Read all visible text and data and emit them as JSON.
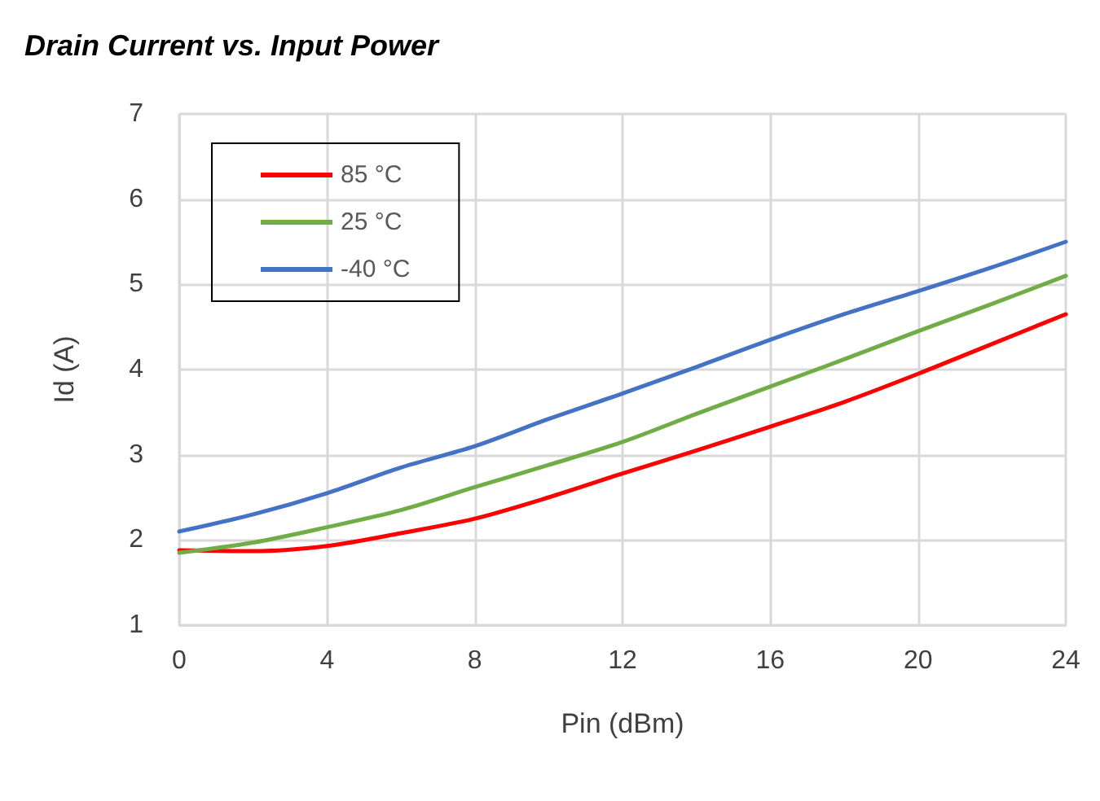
{
  "chart_data": {
    "type": "line",
    "title": "Drain Current vs. Input Power",
    "xlabel": "Pin (dBm)",
    "ylabel": "Id (A)",
    "x": [
      0,
      2,
      4,
      6,
      8,
      10,
      12,
      14,
      16,
      18,
      20,
      22,
      24
    ],
    "series": [
      {
        "name": "85 °C",
        "color": "#ff0000",
        "values": [
          1.88,
          1.87,
          1.93,
          2.08,
          2.25,
          2.5,
          2.78,
          3.05,
          3.33,
          3.62,
          3.95,
          4.3,
          4.65
        ]
      },
      {
        "name": "25 °C",
        "color": "#70ad47",
        "values": [
          1.85,
          1.97,
          2.15,
          2.35,
          2.62,
          2.88,
          3.15,
          3.48,
          3.8,
          4.12,
          4.45,
          4.77,
          5.1
        ]
      },
      {
        "name": "-40 °C",
        "color": "#4472c4",
        "values": [
          2.1,
          2.3,
          2.55,
          2.85,
          3.1,
          3.42,
          3.72,
          4.03,
          4.35,
          4.65,
          4.92,
          5.2,
          5.5
        ]
      }
    ],
    "xlim": [
      0,
      24
    ],
    "xticks": [
      0,
      4,
      8,
      12,
      16,
      20,
      24
    ],
    "ylim": [
      1,
      7
    ],
    "yticks": [
      1,
      2,
      3,
      4,
      5,
      6,
      7
    ],
    "grid": true,
    "legend": "top left",
    "marker": "none",
    "line_style": "solid"
  }
}
